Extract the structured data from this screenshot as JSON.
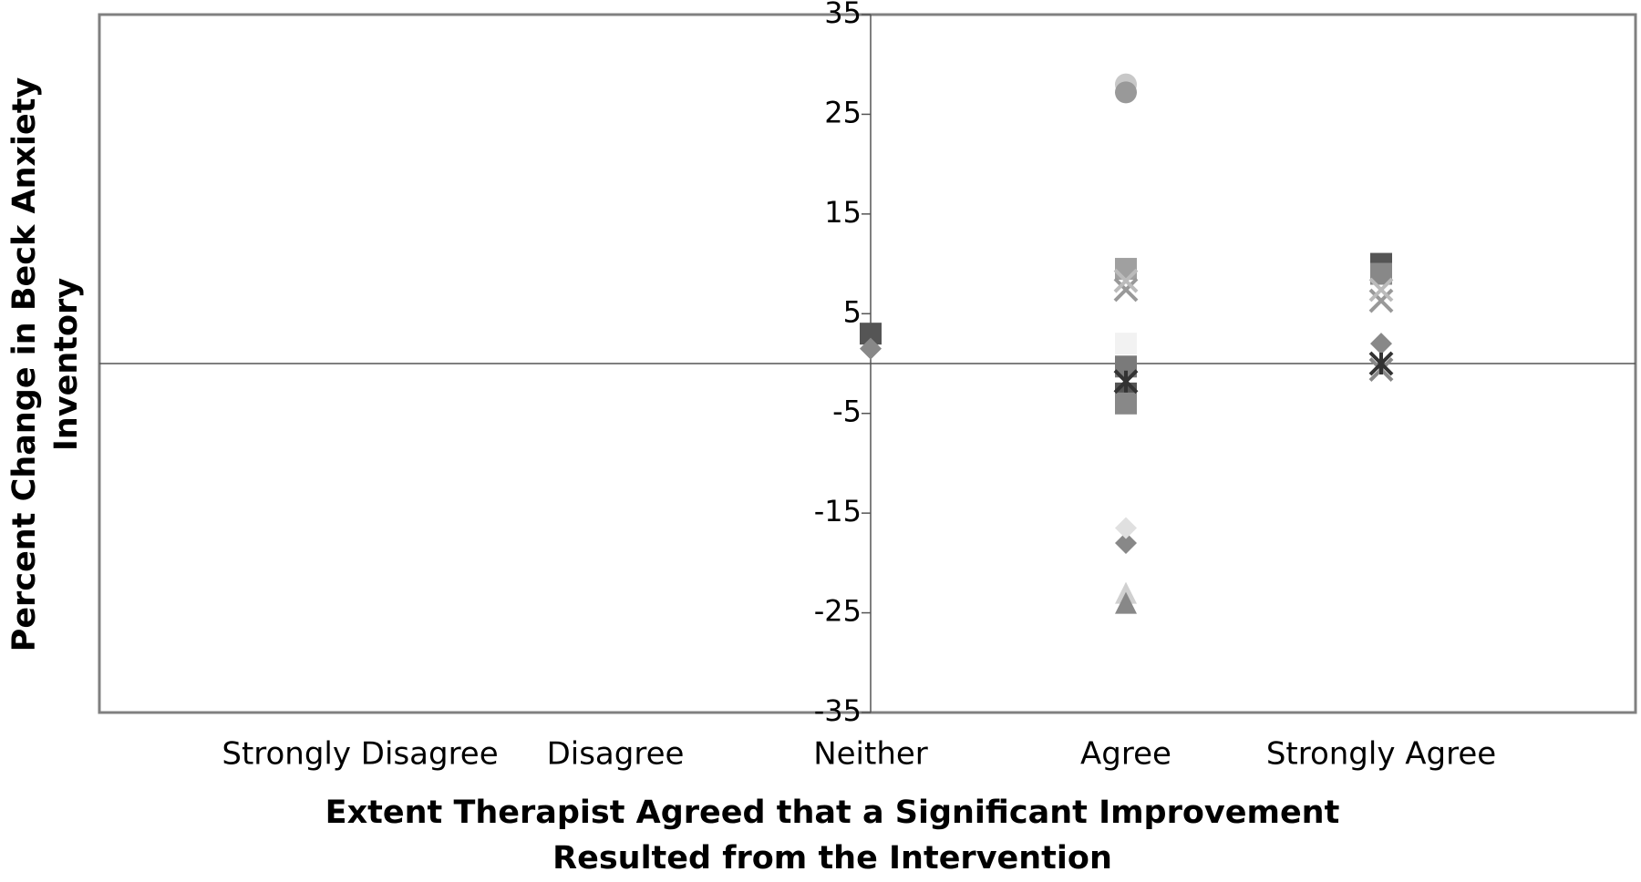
{
  "chart_data": {
    "type": "scatter",
    "x_label": "Extent Therapist Agreed that a Significant Improvement Resulted from the Intervention",
    "y_label": "Percent Change in Beck Anxiety Inventory",
    "categories": [
      "Strongly Disagree",
      "Disagree",
      "Neither",
      "Agree",
      "Strongly Agree"
    ],
    "ylim": [
      -35,
      35
    ],
    "yticks": [
      -35,
      -25,
      -15,
      -5,
      5,
      15,
      25,
      35
    ],
    "series": [
      {
        "marker": "circle",
        "color": "#c8c8c8",
        "values": [
          null,
          null,
          null,
          28,
          null
        ]
      },
      {
        "marker": "circle",
        "color": "#999999",
        "values": [
          null,
          null,
          null,
          27.2,
          null
        ]
      },
      {
        "marker": "square",
        "color": "#a0a0a0",
        "values": [
          null,
          null,
          null,
          9.5,
          null
        ]
      },
      {
        "marker": "square",
        "color": "#555555",
        "values": [
          null,
          null,
          3,
          -3,
          10
        ]
      },
      {
        "marker": "square",
        "color": "#888888",
        "values": [
          null,
          null,
          null,
          -4,
          9
        ]
      },
      {
        "marker": "square",
        "color": "#f2f2f2",
        "values": [
          null,
          null,
          null,
          2,
          null
        ]
      },
      {
        "marker": "square",
        "color": "#7a7a7a",
        "values": [
          null,
          null,
          null,
          -0.3,
          null
        ]
      },
      {
        "marker": "diamond",
        "color": "#888888",
        "values": [
          null,
          null,
          1.5,
          -18,
          2
        ]
      },
      {
        "marker": "diamond",
        "color": "#e0e0e0",
        "values": [
          null,
          null,
          null,
          -16.5,
          null
        ]
      },
      {
        "marker": "cross",
        "color": "#999999",
        "values": [
          null,
          null,
          null,
          7.4,
          6.3
        ]
      },
      {
        "marker": "cross",
        "color": "#bbbbbb",
        "values": [
          null,
          null,
          null,
          8.3,
          7.4
        ]
      },
      {
        "marker": "cross",
        "color": "#888888",
        "values": [
          null,
          null,
          null,
          null,
          -0.6
        ]
      },
      {
        "marker": "asterisk",
        "color": "#333333",
        "values": [
          null,
          null,
          null,
          -1.8,
          0
        ]
      },
      {
        "marker": "triangle",
        "color": "#d0d0d0",
        "values": [
          null,
          null,
          null,
          -23,
          null
        ]
      },
      {
        "marker": "triangle",
        "color": "#888888",
        "values": [
          null,
          null,
          null,
          -24,
          null
        ]
      }
    ]
  }
}
